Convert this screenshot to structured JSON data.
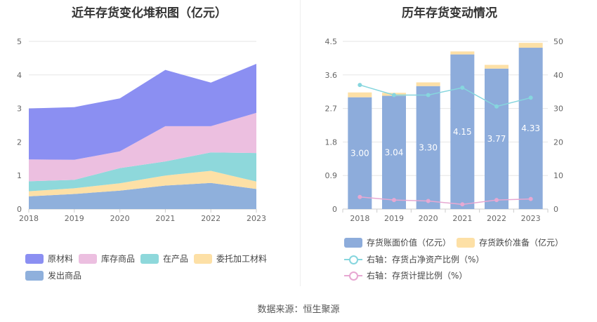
{
  "titles": {
    "left": "近年存货变化堆积图（亿元）",
    "right": "历年存货变动情况"
  },
  "source": "数据来源：恒生聚源",
  "chart_data": [
    {
      "type": "area",
      "stacked": true,
      "title": "近年存货变化堆积图（亿元）",
      "x": [
        "2018",
        "2019",
        "2020",
        "2021",
        "2022",
        "2023"
      ],
      "ylim": [
        0,
        5
      ],
      "yticks": [
        "0",
        "1",
        "2",
        "3",
        "4",
        "5"
      ],
      "grid": true,
      "legend_position": "bottom",
      "series": [
        {
          "name": "发出商品",
          "color": "#8fb0dc",
          "values": [
            0.38,
            0.45,
            0.55,
            0.7,
            0.78,
            0.6
          ]
        },
        {
          "name": "委托加工材料",
          "color": "#fde0a6",
          "values": [
            0.15,
            0.17,
            0.22,
            0.3,
            0.36,
            0.22
          ]
        },
        {
          "name": "在产品",
          "color": "#8ed8db",
          "values": [
            0.3,
            0.25,
            0.45,
            0.42,
            0.55,
            0.85
          ]
        },
        {
          "name": "库存商品",
          "color": "#ecbfe0",
          "values": [
            0.65,
            0.6,
            0.5,
            1.05,
            0.78,
            1.2
          ]
        },
        {
          "name": "原材料",
          "color": "#8b8ff2",
          "values": [
            1.52,
            1.57,
            1.58,
            1.68,
            1.3,
            1.46
          ]
        }
      ],
      "legend_order": [
        "原材料",
        "库存商品",
        "在产品",
        "委托加工材料",
        "发出商品"
      ]
    },
    {
      "type": "bar",
      "stacked": true,
      "title": "历年存货变动情况",
      "categories": [
        "2018",
        "2019",
        "2020",
        "2021",
        "2022",
        "2023"
      ],
      "ylim": [
        0,
        4.5
      ],
      "yticks": [
        "0",
        "0.9",
        "1.8",
        "2.7",
        "3.6",
        "4.5"
      ],
      "y2lim": [
        0,
        50
      ],
      "y2ticks": [
        "0",
        "10",
        "20",
        "30",
        "40",
        "50"
      ],
      "grid": true,
      "legend_position": "bottom",
      "series": [
        {
          "name": "存货账面价值（亿元）",
          "color": "#8dacdb",
          "type": "bar",
          "values": [
            3.0,
            3.04,
            3.3,
            4.15,
            3.77,
            4.33
          ],
          "labels": [
            "3.00",
            "3.04",
            "3.30",
            "4.15",
            "3.77",
            "4.33"
          ]
        },
        {
          "name": "存货跌价准备（亿元）",
          "color": "#fde0a6",
          "type": "bar",
          "values": [
            0.13,
            0.08,
            0.1,
            0.08,
            0.1,
            0.13
          ]
        },
        {
          "name": "右轴：存货占净资产比例（%）",
          "color": "#86d6de",
          "type": "line",
          "axis": "right",
          "values": [
            37.0,
            34.0,
            34.0,
            36.2,
            30.6,
            33.2
          ]
        },
        {
          "name": "右轴：存货计提比例（%）",
          "color": "#e7a8d2",
          "type": "line",
          "axis": "right",
          "values": [
            3.6,
            2.7,
            2.4,
            1.4,
            2.7,
            3.0
          ]
        }
      ]
    }
  ]
}
